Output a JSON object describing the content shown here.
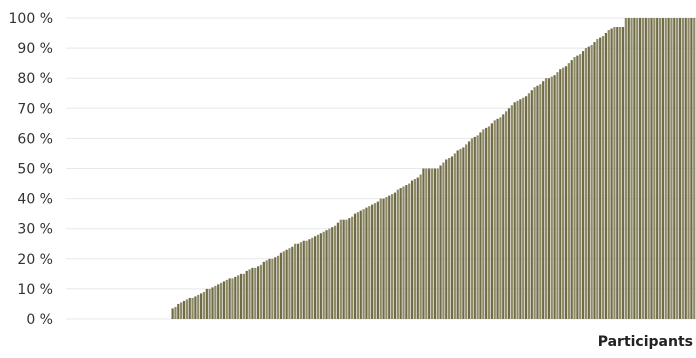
{
  "chart_data": {
    "type": "bar",
    "title": "",
    "xlabel": "Participants",
    "ylabel": "",
    "ylim": [
      0,
      100
    ],
    "y_ticks": [
      "0 %",
      "10 %",
      "20 %",
      "30 %",
      "40 %",
      "50 %",
      "60 %",
      "70 %",
      "80 %",
      "90 %",
      "100 %"
    ],
    "grid": true,
    "legend": "none",
    "colors": {
      "bar_primary": "#6f6a48",
      "bar_secondary": "#8d8a64",
      "grid": "#e8e8e8",
      "text": "#333333"
    },
    "values": [
      3.5,
      4,
      5,
      5.5,
      6,
      6.5,
      7,
      7,
      7.5,
      8,
      8.5,
      9,
      10,
      10,
      10.5,
      11,
      11.5,
      12,
      12.5,
      13,
      13.5,
      13.5,
      14,
      14.5,
      15,
      15,
      16,
      16.5,
      17,
      17,
      17.5,
      18,
      19,
      19.5,
      20,
      20,
      20.5,
      21,
      22,
      22.5,
      23,
      23.5,
      24,
      25,
      25,
      25.5,
      26,
      26,
      26.5,
      27,
      27.5,
      28,
      28.5,
      29,
      29.5,
      30,
      30.5,
      31,
      32,
      33,
      33,
      33,
      33.5,
      34,
      35,
      35.5,
      36,
      36.5,
      37,
      37.5,
      38,
      38.5,
      39,
      40,
      40,
      40.5,
      41,
      41.5,
      42,
      43,
      43.5,
      44,
      44.5,
      45,
      46,
      46.5,
      47,
      48,
      50,
      50,
      50,
      50,
      50,
      50,
      51,
      52,
      53,
      53.5,
      54,
      55,
      56,
      56.5,
      57,
      58,
      59,
      60,
      60.5,
      61,
      62,
      63,
      63.5,
      64,
      65,
      66,
      66.5,
      67,
      68,
      69,
      70,
      71,
      72,
      72.5,
      73,
      73.5,
      74,
      75,
      76,
      77,
      77.5,
      78,
      79,
      80,
      80,
      80.5,
      81,
      82,
      83,
      83.5,
      84,
      85,
      86,
      87,
      87.5,
      88,
      89,
      90,
      90.5,
      91,
      92,
      93,
      93.5,
      94,
      95,
      96,
      96.5,
      97,
      97,
      97,
      97,
      100,
      100,
      100,
      100,
      100,
      100,
      100,
      100,
      100,
      100,
      100,
      100,
      100,
      100,
      100,
      100,
      100,
      100,
      100,
      100,
      100,
      100,
      100,
      100,
      100
    ]
  }
}
